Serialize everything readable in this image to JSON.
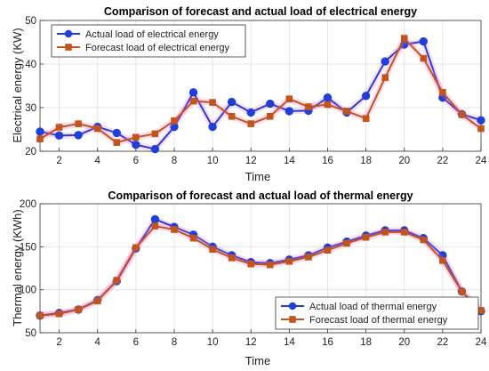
{
  "chart_data": [
    {
      "type": "line",
      "title": "Comparison of forecast and actual load of electrical energy",
      "xlabel": "Time",
      "ylabel": "Electrical energy (KW)",
      "xlim": [
        1,
        24
      ],
      "ylim": [
        20,
        50
      ],
      "xticks": [
        2,
        4,
        6,
        8,
        10,
        12,
        14,
        16,
        18,
        20,
        22,
        24
      ],
      "yticks": [
        20,
        30,
        40,
        50
      ],
      "grid": true,
      "legend_position": "top-left",
      "x": [
        1,
        2,
        3,
        4,
        5,
        6,
        7,
        8,
        9,
        10,
        11,
        12,
        13,
        14,
        15,
        16,
        17,
        18,
        19,
        20,
        21,
        22,
        23,
        24
      ],
      "series": [
        {
          "name": "Actual load of electrical energy",
          "color": "#1f3fd8",
          "marker": "circle",
          "values": [
            24.5,
            23.6,
            23.7,
            25.6,
            24.2,
            21.5,
            20.5,
            25.6,
            33.5,
            25.6,
            31.3,
            28.9,
            30.9,
            29.2,
            29.3,
            32.3,
            28.9,
            32.7,
            40.6,
            44.5,
            45.2,
            32.3,
            28.5,
            27.1
          ]
        },
        {
          "name": "Forecast load of electrical energy",
          "color": "#c5531c",
          "marker": "square",
          "values": [
            22.8,
            25.5,
            26.3,
            25.2,
            22.0,
            23.2,
            24.0,
            27.0,
            31.5,
            31.2,
            28.0,
            26.3,
            28.0,
            32.0,
            30.2,
            30.7,
            29.2,
            27.5,
            36.9,
            45.9,
            41.3,
            33.5,
            28.4,
            25.2
          ]
        }
      ]
    },
    {
      "type": "line",
      "title": "Comparison of forecast and actual load of thermal energy",
      "xlabel": "Time",
      "ylabel": "Thermal energy (KWh)",
      "xlim": [
        1,
        24
      ],
      "ylim": [
        50,
        200
      ],
      "xticks": [
        2,
        4,
        6,
        8,
        10,
        12,
        14,
        16,
        18,
        20,
        22,
        24
      ],
      "yticks": [
        50,
        100,
        150,
        200
      ],
      "grid": true,
      "legend_position": "bottom-right",
      "x": [
        1,
        2,
        3,
        4,
        5,
        6,
        7,
        8,
        9,
        10,
        11,
        12,
        13,
        14,
        15,
        16,
        17,
        18,
        19,
        20,
        21,
        22,
        23,
        24
      ],
      "series": [
        {
          "name": "Actual load of thermal energy",
          "color": "#1f3fd8",
          "marker": "circle",
          "values": [
            70,
            73,
            77,
            88,
            110,
            148,
            182,
            173,
            164,
            150,
            140,
            132,
            131,
            135,
            140,
            149,
            156,
            163,
            169,
            169,
            160,
            140,
            98,
            75
          ]
        },
        {
          "name": "Forecast load of thermal energy",
          "color": "#c5531c",
          "marker": "square",
          "values": [
            70,
            72,
            77,
            87,
            111,
            149,
            174,
            170,
            160,
            147,
            137,
            130,
            129,
            133,
            138,
            146,
            154,
            161,
            167,
            167,
            158,
            134,
            98,
            76
          ]
        }
      ]
    }
  ]
}
